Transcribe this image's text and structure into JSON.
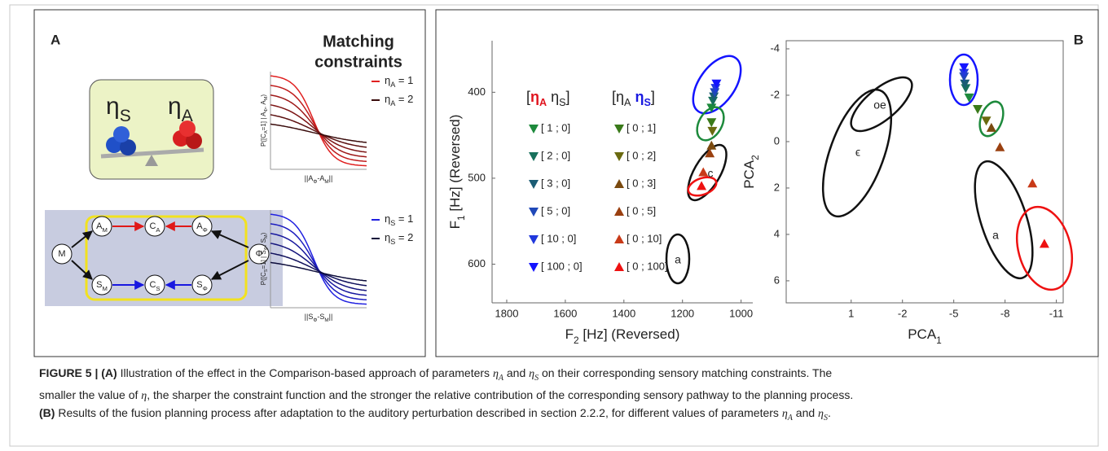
{
  "panel_a": {
    "label": "A",
    "title_lines": [
      "Matching",
      "constraints"
    ],
    "seesaw": [
      [
        {
          "text": "η"
        },
        {
          "text": "S",
          "sub": true
        }
      ],
      [
        {
          "text": "η"
        },
        {
          "text": "A",
          "sub": true
        }
      ]
    ],
    "nodes": [
      [
        {
          "text": "M"
        }
      ],
      [
        {
          "text": "A"
        },
        {
          "text": "M",
          "sub": true
        }
      ],
      [
        {
          "text": "C"
        },
        {
          "text": "A",
          "sub": true
        }
      ],
      [
        {
          "text": "A"
        },
        {
          "text": "Φ",
          "sub": true
        }
      ],
      [
        {
          "text": "Φ"
        }
      ],
      [
        {
          "text": "S"
        },
        {
          "text": "M",
          "sub": true
        }
      ],
      [
        {
          "text": "C"
        },
        {
          "text": "S",
          "sub": true
        }
      ],
      [
        {
          "text": "S"
        },
        {
          "text": "Φ",
          "sub": true
        }
      ]
    ],
    "plots": [
      {
        "ylabel": [
          {
            "text": "P([C"
          },
          {
            "text": "A",
            "sub": true
          },
          {
            "text": "=1] | A"
          },
          {
            "text": "Φ",
            "sub": true
          },
          {
            "text": ", A"
          },
          {
            "text": "M",
            "sub": true
          },
          {
            "text": ")"
          }
        ],
        "xlabel": [
          {
            "text": "||A"
          },
          {
            "text": "Φ",
            "sub": true
          },
          {
            "text": "-A"
          },
          {
            "text": "M",
            "sub": true
          },
          {
            "text": "||"
          }
        ],
        "legend": [
          {
            "color": "#e02020",
            "text": [
              {
                "text": "η"
              },
              {
                "text": "A",
                "sub": true
              },
              {
                "text": " = 1"
              }
            ]
          },
          {
            "color": "#3a0c0c",
            "text": [
              {
                "text": "η"
              },
              {
                "text": "A",
                "sub": true
              },
              {
                "text": " = 2"
              }
            ]
          }
        ]
      },
      {
        "ylabel": [
          {
            "text": "P([C"
          },
          {
            "text": "S",
            "sub": true
          },
          {
            "text": "=1] | S"
          },
          {
            "text": "Φ",
            "sub": true
          },
          {
            "text": ", S"
          },
          {
            "text": "M",
            "sub": true
          },
          {
            "text": ")"
          }
        ],
        "xlabel": [
          {
            "text": "||S"
          },
          {
            "text": "Φ",
            "sub": true
          },
          {
            "text": "-S"
          },
          {
            "text": "M",
            "sub": true
          },
          {
            "text": "||"
          }
        ],
        "legend": [
          {
            "color": "#2020e0",
            "text": [
              {
                "text": "η"
              },
              {
                "text": "S",
                "sub": true
              },
              {
                "text": " = 1"
              }
            ]
          },
          {
            "color": "#0c0c3a",
            "text": [
              {
                "text": "η"
              },
              {
                "text": "S",
                "sub": true
              },
              {
                "text": " = 2"
              }
            ]
          }
        ]
      }
    ]
  },
  "panel_b_label": "B",
  "chart_data": [
    {
      "type": "scatter",
      "x_label": [
        {
          "text": "F"
        },
        {
          "text": "2",
          "sub": true
        },
        {
          "text": " [Hz] (Reversed)"
        }
      ],
      "y_label": [
        {
          "text": "F"
        },
        {
          "text": "1",
          "sub": true
        },
        {
          "text": " [Hz] (Reversed)"
        }
      ],
      "xlim": [
        1850,
        960
      ],
      "ylim": [
        645,
        340
      ],
      "xticks": [
        1800,
        1600,
        1400,
        1200,
        1000
      ],
      "yticks": [
        400,
        500,
        600
      ],
      "legend_headers": [
        [
          {
            "text": "["
          },
          {
            "text": "η",
            "color": "#e0141e",
            "bold": true
          },
          {
            "text": "A",
            "sub": true,
            "color": "#e0141e",
            "bold": true
          },
          {
            "text": " η"
          },
          {
            "text": "S",
            "sub": true
          },
          {
            "text": "]"
          }
        ],
        [
          {
            "text": "["
          },
          {
            "text": "η"
          },
          {
            "text": "A",
            "sub": true
          },
          {
            "text": " η",
            "color": "#1a1ae0",
            "bold": true
          },
          {
            "text": "S",
            "sub": true,
            "color": "#1a1ae0",
            "bold": true
          },
          {
            "text": "]"
          }
        ]
      ],
      "annotations": [
        "c",
        "a"
      ],
      "series": [
        {
          "name": "[ 1 ; 0]",
          "color": "#1d8a3c",
          "marker": "down",
          "x": [
            1101
          ],
          "values": [
            418
          ]
        },
        {
          "name": "[ 2 ; 0]",
          "color": "#17705c",
          "marker": "down",
          "x": [
            1096
          ],
          "values": [
            410
          ]
        },
        {
          "name": "[ 3 ; 0]",
          "color": "#1a5c74",
          "marker": "down",
          "x": [
            1093
          ],
          "values": [
            405
          ]
        },
        {
          "name": "[ 5 ; 0]",
          "color": "#1f48b8",
          "marker": "down",
          "x": [
            1090
          ],
          "values": [
            400
          ]
        },
        {
          "name": "[ 10 ; 0]",
          "color": "#2038dc",
          "marker": "down",
          "x": [
            1087
          ],
          "values": [
            395
          ]
        },
        {
          "name": "[ 100 ; 0]",
          "color": "#1414ff",
          "marker": "down",
          "x": [
            1084
          ],
          "values": [
            390
          ]
        },
        {
          "name": "[ 0 ; 1]",
          "color": "#3a7a1a",
          "marker": "down",
          "x": [
            1101
          ],
          "values": [
            435
          ]
        },
        {
          "name": "[ 0 ; 2]",
          "color": "#6a6a10",
          "marker": "down",
          "x": [
            1098
          ],
          "values": [
            445
          ]
        },
        {
          "name": "[ 0 ; 3]",
          "color": "#7a4a10",
          "marker": "up",
          "x": [
            1101
          ],
          "values": [
            462
          ]
        },
        {
          "name": "[ 0 ; 5]",
          "color": "#9a4010",
          "marker": "up",
          "x": [
            1107
          ],
          "values": [
            471
          ]
        },
        {
          "name": "[ 0 ; 10]",
          "color": "#c83a18",
          "marker": "up",
          "x": [
            1129
          ],
          "values": [
            493
          ]
        },
        {
          "name": "[ 0 ; 100]",
          "color": "#ee1111",
          "marker": "up",
          "x": [
            1135
          ],
          "values": [
            509
          ]
        }
      ]
    },
    {
      "type": "scatter",
      "x_label": [
        {
          "text": "PCA"
        },
        {
          "text": "1",
          "sub": true
        }
      ],
      "y_label": [
        {
          "text": "PCA"
        },
        {
          "text": "2",
          "sub": true
        }
      ],
      "xlim": [
        4.8,
        -11.4
      ],
      "ylim": [
        6.95,
        -4.35
      ],
      "xticks": [
        1,
        -2,
        -5,
        -8,
        -11
      ],
      "yticks": [
        -4,
        -2,
        0,
        2,
        4,
        6
      ],
      "annotations": [
        "oe",
        "ϵ",
        "a"
      ],
      "series": [
        {
          "color": "#1d8a3c",
          "marker": "down",
          "x": [
            -5.9
          ],
          "values": [
            -1.9
          ]
        },
        {
          "color": "#17705c",
          "marker": "down",
          "x": [
            -5.7
          ],
          "values": [
            -2.3
          ]
        },
        {
          "color": "#1a5c74",
          "marker": "down",
          "x": [
            -5.65
          ],
          "values": [
            -2.5
          ]
        },
        {
          "color": "#1f48b8",
          "marker": "down",
          "x": [
            -5.6
          ],
          "values": [
            -2.8
          ]
        },
        {
          "color": "#2038dc",
          "marker": "down",
          "x": [
            -5.6
          ],
          "values": [
            -2.96
          ]
        },
        {
          "color": "#1414ff",
          "marker": "down",
          "x": [
            -5.6
          ],
          "values": [
            -3.2
          ]
        },
        {
          "color": "#3a7a1a",
          "marker": "down",
          "x": [
            -6.4
          ],
          "values": [
            -1.4
          ]
        },
        {
          "color": "#6a6a10",
          "marker": "down",
          "x": [
            -6.9
          ],
          "values": [
            -0.9
          ]
        },
        {
          "color": "#7a4a10",
          "marker": "up",
          "x": [
            -7.2
          ],
          "values": [
            -0.6
          ]
        },
        {
          "color": "#9a4010",
          "marker": "up",
          "x": [
            -7.7
          ],
          "values": [
            0.24
          ]
        },
        {
          "color": "#c83a18",
          "marker": "up",
          "x": [
            -9.6
          ],
          "values": [
            1.8
          ]
        },
        {
          "color": "#ee1111",
          "marker": "up",
          "x": [
            -10.3
          ],
          "values": [
            4.4
          ]
        }
      ]
    }
  ],
  "caption": {
    "lines": [
      [
        {
          "text": "FIGURE 5 | (A)",
          "bold": true
        },
        {
          "text": " Illustration of the effect in the Comparison-based approach of parameters "
        },
        {
          "text": "η",
          "italic": true
        },
        {
          "text": "A",
          "italic": true,
          "sub": true
        },
        {
          "text": " and "
        },
        {
          "text": "η",
          "italic": true
        },
        {
          "text": "S",
          "italic": true,
          "sub": true
        },
        {
          "text": " on their corresponding sensory matching constraints. The"
        }
      ],
      [
        {
          "text": "smaller the value of "
        },
        {
          "text": "η",
          "italic": true
        },
        {
          "text": ", the sharper the constraint function and the stronger the relative contribution of the corresponding sensory pathway to the planning process."
        }
      ],
      [
        {
          "text": "(B)",
          "bold": true
        },
        {
          "text": " Results of the fusion planning process after adaptation to the auditory perturbation described in section 2.2.2, for different values of parameters "
        },
        {
          "text": "η",
          "italic": true
        },
        {
          "text": "A",
          "italic": true,
          "sub": true
        },
        {
          "text": " and "
        },
        {
          "text": "η",
          "italic": true
        },
        {
          "text": "S",
          "italic": true,
          "sub": true
        },
        {
          "text": "."
        }
      ]
    ]
  }
}
